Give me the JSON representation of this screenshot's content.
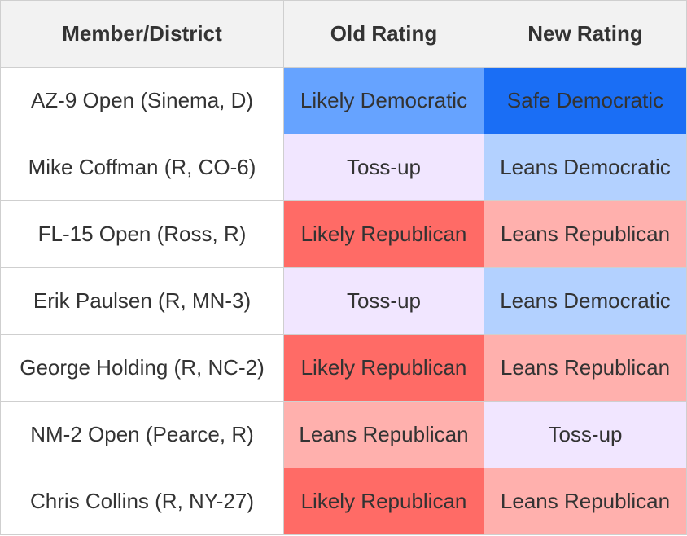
{
  "table": {
    "header": [
      "Member/District",
      "Old Rating",
      "New Rating"
    ],
    "rows": [
      [
        "AZ-9 Open (Sinema, D)",
        "Likely Democratic",
        "Safe Democratic"
      ],
      [
        "Mike Coffman (R, CO-6)",
        "Toss-up",
        "Leans Democratic"
      ],
      [
        "FL-15 Open (Ross, R)",
        "Likely Republican",
        "Leans Republican"
      ],
      [
        "Erik Paulsen (R, MN-3)",
        "Toss-up",
        "Leans Democratic"
      ],
      [
        "George Holding (R, NC-2)",
        "Likely Republican",
        "Leans Republican"
      ],
      [
        "NM-2 Open (Pearce, R)",
        "Leans Republican",
        "Toss-up"
      ],
      [
        "Chris Collins (R, NY-27)",
        "Likely Republican",
        "Leans Republican"
      ]
    ]
  }
}
